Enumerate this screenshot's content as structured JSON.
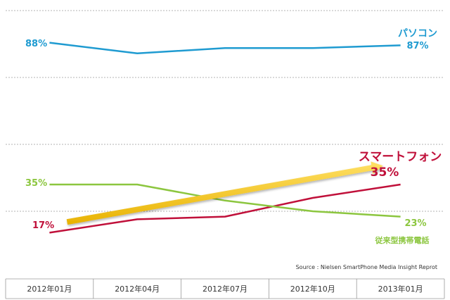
{
  "colors": {
    "pc": "#1f9bd1",
    "smartphone": "#c0103a",
    "feature_phone": "#8cc63f",
    "trend_arrow": "#f5c518",
    "grid": "#9a9a9a"
  },
  "source_text": "Source :  Nielsen SmartPhone Media Insight Reprot",
  "chart_data": {
    "type": "line",
    "categories": [
      "2012年01月",
      "2012年04月",
      "2012年07月",
      "2012年10月",
      "2013年01月"
    ],
    "ylim": [
      0,
      100
    ],
    "grid": true,
    "series": [
      {
        "key": "pc",
        "name": "パソコン",
        "values": [
          88,
          84,
          86,
          86,
          87
        ],
        "start_label": "88%",
        "end_label": "87%"
      },
      {
        "key": "smartphone",
        "name": "スマートフォン",
        "values": [
          17,
          22,
          23,
          30,
          35
        ],
        "start_label": "17%",
        "end_label": "35%"
      },
      {
        "key": "feature_phone",
        "name": "従来型携帯電話",
        "values": [
          35,
          35,
          29,
          25,
          23
        ],
        "start_label": "35%",
        "end_label": "23%"
      }
    ],
    "annotations": [
      {
        "type": "arrow",
        "color": "trend_arrow",
        "from": [
          0.2,
          21
        ],
        "to": [
          3.8,
          42
        ]
      }
    ]
  }
}
